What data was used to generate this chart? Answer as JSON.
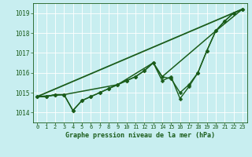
{
  "bg_color": "#c8eef0",
  "grid_color": "#ffffff",
  "line_color": "#1a5c1a",
  "title": "Graphe pression niveau de la mer (hPa)",
  "xlim": [
    -0.5,
    23.5
  ],
  "ylim": [
    1013.5,
    1019.5
  ],
  "yticks": [
    1014,
    1015,
    1016,
    1017,
    1018,
    1019
  ],
  "xticks": [
    0,
    1,
    2,
    3,
    4,
    5,
    6,
    7,
    8,
    9,
    10,
    11,
    12,
    13,
    14,
    15,
    16,
    17,
    18,
    19,
    20,
    21,
    22,
    23
  ],
  "series": [
    {
      "x": [
        0,
        23
      ],
      "y": [
        1014.8,
        1019.2
      ],
      "marker": null,
      "markersize": 0,
      "linewidth": 1.3
    },
    {
      "x": [
        0,
        3,
        9,
        13,
        14,
        20,
        23
      ],
      "y": [
        1014.8,
        1014.9,
        1015.4,
        1016.5,
        1015.8,
        1018.1,
        1019.2
      ],
      "marker": null,
      "markersize": 0,
      "linewidth": 1.1
    },
    {
      "x": [
        0,
        1,
        2,
        3,
        4,
        5,
        6,
        7,
        8,
        9,
        10,
        11,
        12,
        13,
        14,
        15,
        16,
        17,
        18,
        19,
        20,
        21,
        22,
        23
      ],
      "y": [
        1014.8,
        1014.8,
        1014.9,
        1014.9,
        1014.1,
        1014.6,
        1014.8,
        1015.0,
        1015.2,
        1015.4,
        1015.6,
        1015.8,
        1016.1,
        1016.5,
        1015.8,
        1015.7,
        1015.0,
        1015.4,
        1016.0,
        1017.1,
        1018.1,
        1018.6,
        1019.0,
        1019.2
      ],
      "marker": "D",
      "markersize": 2.5,
      "linewidth": 1.0
    },
    {
      "x": [
        0,
        1,
        2,
        3,
        4,
        5,
        6,
        7,
        8,
        9,
        10,
        11,
        12,
        13,
        14,
        15,
        16,
        17,
        18,
        19,
        20,
        21,
        22,
        23
      ],
      "y": [
        1014.8,
        1014.8,
        1014.9,
        1014.9,
        1014.1,
        1014.6,
        1014.8,
        1015.0,
        1015.2,
        1015.4,
        1015.6,
        1015.8,
        1016.1,
        1016.5,
        1015.6,
        1015.8,
        1014.7,
        1015.3,
        1016.0,
        1017.1,
        1018.1,
        1018.6,
        1019.0,
        1019.2
      ],
      "marker": "D",
      "markersize": 2.5,
      "linewidth": 1.0
    }
  ]
}
